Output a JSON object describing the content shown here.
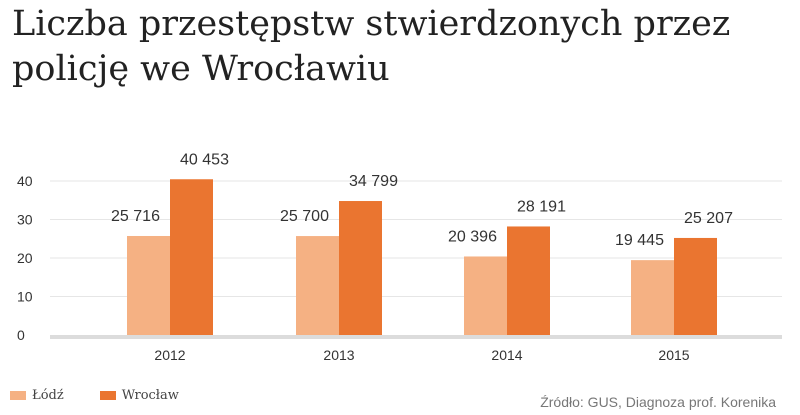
{
  "title": "Liczba przestępstw  stwierdzonych przez policję we Wrocławiu",
  "source": "Źródło: GUS, Diagnoza prof. Korenika",
  "colors": {
    "lodz": "#f5b183",
    "wroclaw": "#ea7530",
    "grid": "#e6e6e6",
    "axis": "#dcdcdc"
  },
  "chart_data": {
    "type": "bar",
    "categories": [
      "2012",
      "2013",
      "2014",
      "2015"
    ],
    "series": [
      {
        "name": "Łódź",
        "values": [
          25716,
          25700,
          20396,
          19445
        ],
        "labels": [
          "25 716",
          "25 700",
          "20 396",
          "19 445"
        ]
      },
      {
        "name": "Wrocław",
        "values": [
          40453,
          34799,
          28191,
          25207
        ],
        "labels": [
          "40 453",
          "34 799",
          "28 191",
          "25 207"
        ]
      }
    ],
    "yticks": [
      "0",
      "10",
      "20",
      "30",
      "40"
    ],
    "ylim": [
      0,
      45
    ],
    "grid": true,
    "legend": "bottom-left"
  }
}
